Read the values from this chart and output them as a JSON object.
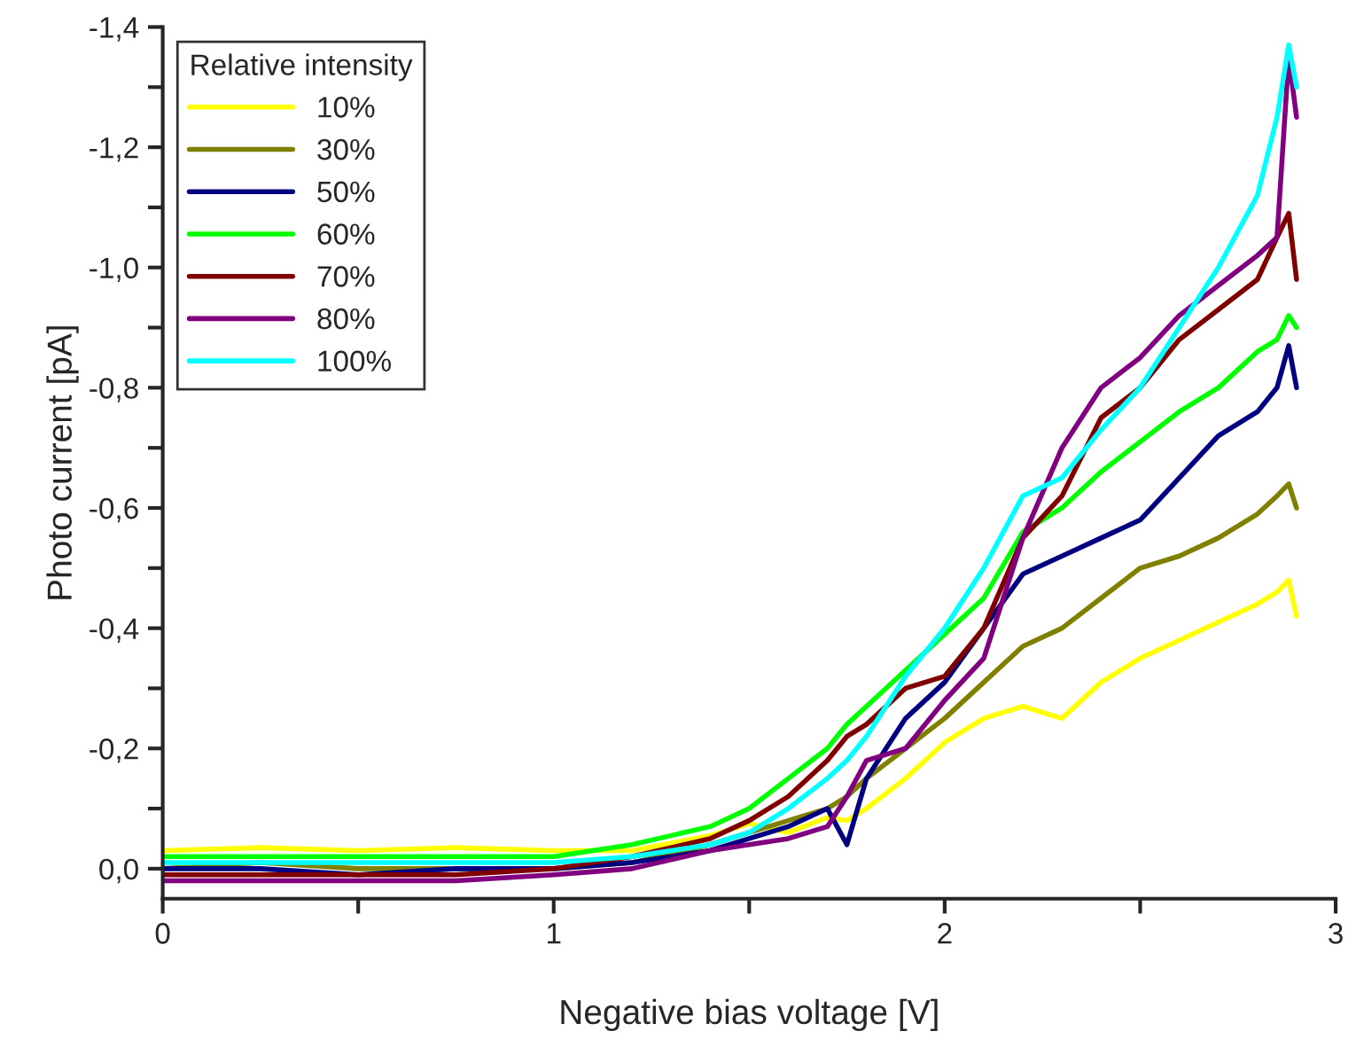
{
  "chart_data": {
    "type": "line",
    "xlabel": "Negative bias voltage [V]",
    "ylabel": "Photo current [pA]",
    "legend_title": "Relative intensity",
    "legend": "top left",
    "grid": false,
    "x": [
      0,
      0.25,
      0.5,
      0.75,
      1.0,
      1.2,
      1.4,
      1.5,
      1.6,
      1.7,
      1.75,
      1.8,
      1.9,
      2.0,
      2.1,
      2.2,
      2.3,
      2.4,
      2.5,
      2.6,
      2.7,
      2.8,
      2.85,
      2.88,
      2.9
    ],
    "xlim": [
      0,
      3
    ],
    "xticks": [
      0,
      {
        "value": 0.5,
        "label": null
      },
      1,
      {
        "value": 1.5,
        "label": null
      },
      2,
      {
        "value": 2.5,
        "label": null
      },
      3
    ],
    "ylim": [
      0.05,
      -1.4
    ],
    "yticks": [
      {
        "value": 0.0,
        "label": "0,0"
      },
      {
        "value": -0.1,
        "label": null
      },
      {
        "value": -0.2,
        "label": "-0,2"
      },
      {
        "value": -0.3,
        "label": null
      },
      {
        "value": -0.4,
        "label": "-0,4"
      },
      {
        "value": -0.5,
        "label": null
      },
      {
        "value": -0.6,
        "label": "-0,6"
      },
      {
        "value": -0.7,
        "label": null
      },
      {
        "value": -0.8,
        "label": "-0,8"
      },
      {
        "value": -0.9,
        "label": null
      },
      {
        "value": -1.0,
        "label": "-1,0"
      },
      {
        "value": -1.1,
        "label": null
      },
      {
        "value": -1.2,
        "label": "-1,2"
      },
      {
        "value": -1.3,
        "label": null
      },
      {
        "value": -1.4,
        "label": "-1,4"
      }
    ],
    "series": [
      {
        "name": "10%",
        "color": "#ffff00",
        "values": [
          -0.03,
          -0.035,
          -0.03,
          -0.035,
          -0.03,
          -0.03,
          -0.055,
          -0.075,
          -0.06,
          -0.085,
          -0.08,
          -0.1,
          -0.15,
          -0.21,
          -0.25,
          -0.27,
          -0.25,
          -0.31,
          -0.35,
          -0.38,
          -0.41,
          -0.44,
          -0.46,
          -0.48,
          -0.42
        ]
      },
      {
        "name": "30%",
        "color": "#808000",
        "values": [
          0.0,
          -0.01,
          0.0,
          0.0,
          0.0,
          -0.01,
          -0.04,
          -0.06,
          -0.08,
          -0.1,
          -0.12,
          -0.15,
          -0.2,
          -0.25,
          -0.31,
          -0.37,
          -0.4,
          -0.45,
          -0.5,
          -0.52,
          -0.55,
          -0.59,
          -0.62,
          -0.64,
          -0.6
        ]
      },
      {
        "name": "50%",
        "color": "#000080",
        "values": [
          0.0,
          0.0,
          0.01,
          0.0,
          0.0,
          -0.01,
          -0.03,
          -0.05,
          -0.07,
          -0.1,
          -0.04,
          -0.15,
          -0.25,
          -0.31,
          -0.4,
          -0.49,
          -0.52,
          -0.55,
          -0.58,
          -0.65,
          -0.72,
          -0.76,
          -0.8,
          -0.87,
          -0.8
        ]
      },
      {
        "name": "60%",
        "color": "#00ff00",
        "values": [
          -0.02,
          -0.02,
          -0.02,
          -0.02,
          -0.02,
          -0.04,
          -0.07,
          -0.1,
          -0.15,
          -0.2,
          -0.24,
          -0.27,
          -0.33,
          -0.39,
          -0.45,
          -0.56,
          -0.6,
          -0.66,
          -0.71,
          -0.76,
          -0.8,
          -0.86,
          -0.88,
          -0.92,
          -0.9
        ]
      },
      {
        "name": "70%",
        "color": "#800000",
        "values": [
          0.01,
          0.01,
          0.01,
          0.01,
          0.0,
          -0.02,
          -0.05,
          -0.08,
          -0.12,
          -0.18,
          -0.22,
          -0.24,
          -0.3,
          -0.32,
          -0.4,
          -0.55,
          -0.62,
          -0.75,
          -0.8,
          -0.88,
          -0.93,
          -0.98,
          -1.05,
          -1.09,
          -0.98
        ]
      },
      {
        "name": "80%",
        "color": "#800080",
        "values": [
          0.02,
          0.02,
          0.02,
          0.02,
          0.01,
          0.0,
          -0.03,
          -0.04,
          -0.05,
          -0.07,
          -0.12,
          -0.18,
          -0.2,
          -0.28,
          -0.35,
          -0.55,
          -0.7,
          -0.8,
          -0.85,
          -0.92,
          -0.97,
          -1.02,
          -1.05,
          -1.35,
          -1.25
        ]
      },
      {
        "name": "100%",
        "color": "#00ffff",
        "values": [
          -0.01,
          -0.01,
          -0.01,
          -0.01,
          -0.01,
          -0.02,
          -0.04,
          -0.06,
          -0.1,
          -0.15,
          -0.18,
          -0.22,
          -0.32,
          -0.4,
          -0.5,
          -0.62,
          -0.65,
          -0.73,
          -0.8,
          -0.9,
          -1.0,
          -1.12,
          -1.25,
          -1.37,
          -1.3
        ]
      }
    ]
  }
}
